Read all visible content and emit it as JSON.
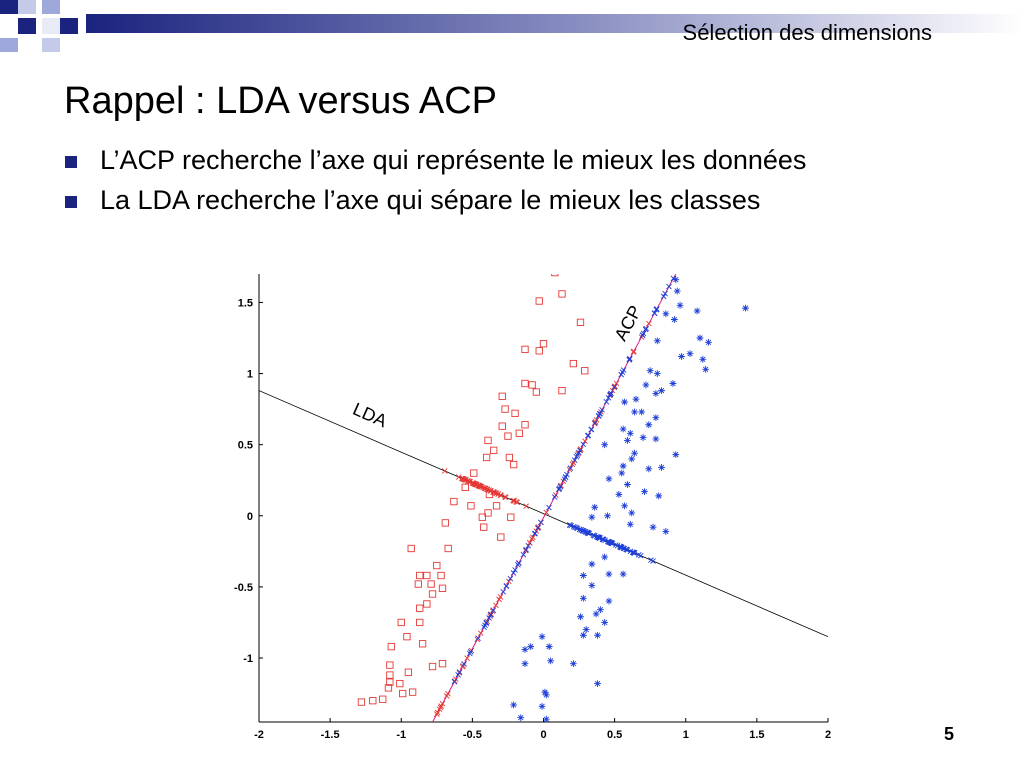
{
  "header": {
    "section_title": "Sélection des dimensions"
  },
  "slide": {
    "title": "Rappel : LDA versus ACP",
    "bullets": [
      "L’ACP recherche l’axe qui représente le mieux les données",
      "La LDA recherche l’axe qui sépare le mieux les classes"
    ],
    "page_number": "5"
  },
  "colors": {
    "class_red": "#e53935",
    "class_blue": "#1e3fd8",
    "projection_line": "#000000",
    "acp_line": "#d81b8c",
    "bullet": "#1a237e",
    "header_dark": "#1a237e"
  },
  "chart_data": {
    "type": "scatter",
    "xlim": [
      -2,
      2
    ],
    "ylim": [
      -1.45,
      1.7
    ],
    "x_ticks": [
      "-2",
      "-1.5",
      "-1",
      "-0.5",
      "0",
      "0.5",
      "1",
      "1.5",
      "2"
    ],
    "y_ticks": [
      "1.5",
      "1",
      "0.5",
      "0",
      "-0.5",
      "-1"
    ],
    "annotations": [
      {
        "text": "LDA",
        "x": -1.35,
        "y": 0.72,
        "angle": 24
      },
      {
        "text": "ACP",
        "x": 0.57,
        "y": 1.22,
        "angle": -62
      }
    ],
    "lines": [
      {
        "name": "LDA",
        "from": [
          -2,
          0.88
        ],
        "to": [
          2,
          -0.85
        ]
      },
      {
        "name": "ACP",
        "from": [
          -0.78,
          -1.45
        ],
        "to": [
          0.93,
          1.7
        ]
      }
    ],
    "series": [
      {
        "marker": "square",
        "points": [
          [
            0.08,
            1.71
          ],
          [
            0.13,
            1.56
          ],
          [
            -0.03,
            1.51
          ],
          [
            0.26,
            1.36
          ],
          [
            -0.13,
            1.17
          ],
          [
            0.0,
            1.21
          ],
          [
            -0.03,
            1.16
          ],
          [
            0.21,
            1.07
          ],
          [
            0.29,
            1.02
          ],
          [
            -0.13,
            0.93
          ],
          [
            -0.08,
            0.92
          ],
          [
            -0.05,
            0.87
          ],
          [
            0.13,
            0.88
          ],
          [
            -0.29,
            0.84
          ],
          [
            -0.27,
            0.75
          ],
          [
            -0.2,
            0.72
          ],
          [
            -0.29,
            0.63
          ],
          [
            -0.13,
            0.64
          ],
          [
            -0.17,
            0.58
          ],
          [
            -0.25,
            0.56
          ],
          [
            -0.39,
            0.53
          ],
          [
            -0.35,
            0.46
          ],
          [
            -0.4,
            0.41
          ],
          [
            -0.24,
            0.41
          ],
          [
            -0.21,
            0.36
          ],
          [
            -0.49,
            0.3
          ],
          [
            -0.55,
            0.2
          ],
          [
            -0.38,
            0.15
          ],
          [
            -0.51,
            0.07
          ],
          [
            -0.39,
            0.02
          ],
          [
            -0.33,
            0.07
          ],
          [
            -0.63,
            0.1
          ],
          [
            -0.43,
            -0.01
          ],
          [
            -0.23,
            -0.01
          ],
          [
            -0.69,
            -0.05
          ],
          [
            -0.42,
            -0.08
          ],
          [
            -0.3,
            -0.15
          ],
          [
            -0.67,
            -0.23
          ],
          [
            -0.93,
            -0.23
          ],
          [
            -0.75,
            -0.35
          ],
          [
            -0.82,
            -0.42
          ],
          [
            -0.72,
            -0.42
          ],
          [
            -0.87,
            -0.42
          ],
          [
            -0.79,
            -0.48
          ],
          [
            -0.88,
            -0.48
          ],
          [
            -0.71,
            -0.51
          ],
          [
            -0.78,
            -0.55
          ],
          [
            -0.82,
            -0.62
          ],
          [
            -0.87,
            -0.65
          ],
          [
            -1.0,
            -0.75
          ],
          [
            -0.87,
            -0.75
          ],
          [
            -0.96,
            -0.85
          ],
          [
            -0.85,
            -0.9
          ],
          [
            -1.07,
            -0.92
          ],
          [
            -0.71,
            -1.04
          ],
          [
            -1.08,
            -1.05
          ],
          [
            -0.78,
            -1.06
          ],
          [
            -0.95,
            -1.1
          ],
          [
            -1.08,
            -1.12
          ],
          [
            -1.08,
            -1.17
          ],
          [
            -1.01,
            -1.18
          ],
          [
            -1.09,
            -1.21
          ],
          [
            -0.92,
            -1.24
          ],
          [
            -0.99,
            -1.25
          ],
          [
            -1.13,
            -1.29
          ],
          [
            -1.2,
            -1.3
          ],
          [
            -1.28,
            -1.31
          ]
        ]
      },
      {
        "marker": "star",
        "points": [
          [
            0.93,
            1.66
          ],
          [
            0.94,
            1.58
          ],
          [
            0.96,
            1.48
          ],
          [
            1.42,
            1.46
          ],
          [
            0.86,
            1.42
          ],
          [
            1.08,
            1.44
          ],
          [
            0.92,
            1.38
          ],
          [
            1.1,
            1.25
          ],
          [
            0.8,
            1.23
          ],
          [
            1.16,
            1.22
          ],
          [
            1.03,
            1.14
          ],
          [
            0.97,
            1.12
          ],
          [
            1.12,
            1.1
          ],
          [
            1.14,
            1.03
          ],
          [
            0.75,
            1.02
          ],
          [
            0.8,
            1.0
          ],
          [
            0.72,
            0.92
          ],
          [
            0.91,
            0.93
          ],
          [
            0.83,
            0.88
          ],
          [
            0.65,
            0.82
          ],
          [
            0.79,
            0.86
          ],
          [
            0.57,
            0.8
          ],
          [
            0.64,
            0.73
          ],
          [
            0.69,
            0.73
          ],
          [
            0.79,
            0.69
          ],
          [
            0.74,
            0.64
          ],
          [
            0.56,
            0.61
          ],
          [
            0.61,
            0.58
          ],
          [
            0.7,
            0.55
          ],
          [
            0.59,
            0.53
          ],
          [
            0.79,
            0.54
          ],
          [
            0.43,
            0.5
          ],
          [
            0.64,
            0.44
          ],
          [
            0.93,
            0.43
          ],
          [
            0.62,
            0.4
          ],
          [
            0.56,
            0.35
          ],
          [
            0.74,
            0.33
          ],
          [
            0.83,
            0.34
          ],
          [
            0.55,
            0.3
          ],
          [
            0.46,
            0.26
          ],
          [
            0.59,
            0.22
          ],
          [
            0.71,
            0.17
          ],
          [
            0.81,
            0.14
          ],
          [
            0.53,
            0.15
          ],
          [
            0.57,
            0.07
          ],
          [
            0.36,
            0.06
          ],
          [
            0.62,
            0.02
          ],
          [
            0.45,
            0.0
          ],
          [
            0.77,
            -0.08
          ],
          [
            0.34,
            -0.01
          ],
          [
            0.61,
            -0.06
          ],
          [
            0.86,
            -0.11
          ],
          [
            0.55,
            -0.22
          ],
          [
            0.43,
            -0.29
          ],
          [
            0.34,
            -0.34
          ],
          [
            0.56,
            -0.41
          ],
          [
            0.46,
            -0.41
          ],
          [
            0.28,
            -0.42
          ],
          [
            0.34,
            -0.49
          ],
          [
            0.28,
            -0.58
          ],
          [
            0.46,
            -0.6
          ],
          [
            0.4,
            -0.66
          ],
          [
            0.37,
            -0.69
          ],
          [
            0.26,
            -0.71
          ],
          [
            0.43,
            -0.75
          ],
          [
            0.3,
            -0.8
          ],
          [
            -0.01,
            -0.85
          ],
          [
            0.28,
            -0.84
          ],
          [
            0.38,
            -0.84
          ],
          [
            -0.09,
            -0.92
          ],
          [
            0.04,
            -0.92
          ],
          [
            -0.13,
            -0.94
          ],
          [
            0.05,
            -1.02
          ],
          [
            -0.13,
            -1.04
          ],
          [
            0.21,
            -1.04
          ],
          [
            0.38,
            -1.18
          ],
          [
            0.01,
            -1.24
          ],
          [
            0.02,
            -1.26
          ],
          [
            -0.21,
            -1.33
          ],
          [
            -0.01,
            -1.34
          ],
          [
            -0.16,
            -1.42
          ],
          [
            0.02,
            -1.43
          ]
        ]
      }
    ]
  }
}
